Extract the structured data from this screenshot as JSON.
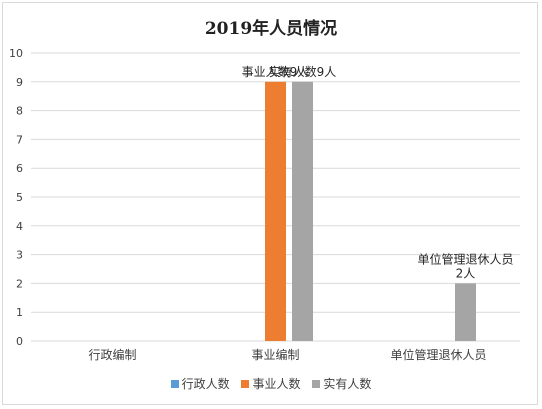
{
  "chart_data": {
    "type": "bar",
    "title": "2019年人员情况",
    "categories": [
      "行政编制",
      "事业编制",
      "单位管理退休人员"
    ],
    "ylim": [
      0,
      10
    ],
    "yticks": [
      0,
      1,
      2,
      3,
      4,
      5,
      6,
      7,
      8,
      9,
      10
    ],
    "grid": true,
    "legend_position": "bottom",
    "series": [
      {
        "name": "行政人数",
        "color": "#5b9bd5",
        "values": [
          null,
          null,
          null
        ],
        "labels": [
          null,
          null,
          null
        ]
      },
      {
        "name": "事业人数",
        "color": "#ed7d31",
        "values": [
          null,
          9,
          null
        ],
        "labels": [
          null,
          "事业人数9人",
          null
        ]
      },
      {
        "name": "实有人数",
        "color": "#a5a5a5",
        "values": [
          null,
          9,
          2
        ],
        "labels": [
          null,
          "实有人数9人",
          "单位管理退休人员\n2人"
        ]
      }
    ]
  }
}
